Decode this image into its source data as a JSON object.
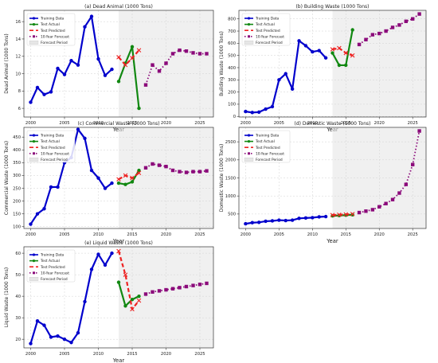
{
  "colors": {
    "train": "#0000cc",
    "test_actual": "#118811",
    "test_pred": "#ee2222",
    "forecast": "#8b0a7a",
    "forecast_period": "#e6e6e6",
    "grid": "#d2d2d2"
  },
  "legend_labels": {
    "train": "Training Data",
    "test_actual": "Test Actual",
    "test_pred": "Test Predicted",
    "forecast": "10-Year Forecast",
    "period": "Forecast Period"
  },
  "chart_data": [
    {
      "type": "line",
      "title": "(a) Dead Animal (1000 Tons)",
      "xlabel": "Year",
      "ylabel": "Dead Animal (1000 Tons)",
      "xlim": [
        1999,
        2027
      ],
      "ylim": [
        5,
        17.3
      ],
      "xticks": [
        2000,
        2005,
        2010,
        2015,
        2020,
        2025
      ],
      "yticks": [
        6,
        8,
        10,
        12,
        14,
        16
      ],
      "forecast_period": [
        2013,
        2027
      ],
      "grid": true,
      "legend": "top-left",
      "series": [
        {
          "role": "train",
          "x": [
            2000,
            2001,
            2002,
            2003,
            2004,
            2005,
            2006,
            2007,
            2008,
            2009,
            2010,
            2011,
            2012
          ],
          "y": [
            6.7,
            8.4,
            7.6,
            7.9,
            10.6,
            9.9,
            11.5,
            11.0,
            15.4,
            16.6,
            11.7,
            9.8,
            10.5
          ]
        },
        {
          "role": "test_actual",
          "x": [
            2013,
            2014,
            2015,
            2016
          ],
          "y": [
            9.1,
            11.2,
            13.1,
            6.0
          ]
        },
        {
          "role": "test_pred",
          "x": [
            2013,
            2014,
            2015,
            2016
          ],
          "y": [
            11.9,
            11.0,
            11.8,
            12.7
          ]
        },
        {
          "role": "forecast",
          "x": [
            2017,
            2018,
            2019,
            2020,
            2021,
            2022,
            2023,
            2024,
            2025,
            2026
          ],
          "y": [
            8.7,
            11.0,
            10.3,
            11.2,
            12.3,
            12.7,
            12.6,
            12.4,
            12.3,
            12.3
          ]
        }
      ]
    },
    {
      "type": "line",
      "title": "(b) Building Waste (1000 Tons)",
      "xlabel": "Year",
      "ylabel": "Building Waste (1000 Tons)",
      "xlim": [
        1999,
        2027
      ],
      "ylim": [
        -5,
        870
      ],
      "xticks": [
        2000,
        2005,
        2010,
        2015,
        2020,
        2025
      ],
      "yticks": [
        0,
        100,
        200,
        300,
        400,
        500,
        600,
        700,
        800
      ],
      "forecast_period": [
        2013,
        2027
      ],
      "grid": true,
      "legend": "top-left",
      "series": [
        {
          "role": "train",
          "x": [
            2000,
            2001,
            2002,
            2003,
            2004,
            2005,
            2006,
            2007,
            2008,
            2009,
            2010,
            2011,
            2012
          ],
          "y": [
            40,
            32,
            35,
            60,
            80,
            300,
            350,
            225,
            620,
            580,
            530,
            540,
            480
          ]
        },
        {
          "role": "test_actual",
          "x": [
            2013,
            2014,
            2015,
            2016
          ],
          "y": [
            520,
            420,
            420,
            710
          ]
        },
        {
          "role": "test_pred",
          "x": [
            2013,
            2014,
            2015,
            2016
          ],
          "y": [
            550,
            560,
            520,
            500
          ]
        },
        {
          "role": "forecast",
          "x": [
            2017,
            2018,
            2019,
            2020,
            2021,
            2022,
            2023,
            2024,
            2025,
            2026
          ],
          "y": [
            590,
            630,
            670,
            680,
            700,
            730,
            750,
            780,
            800,
            840
          ]
        }
      ]
    },
    {
      "type": "line",
      "title": "(c) Commercial Waste (1000 Tons)",
      "xlabel": "Year",
      "ylabel": "Commercial Waste (1000 Tons)",
      "xlim": [
        1999,
        2027
      ],
      "ylim": [
        93,
        488
      ],
      "xticks": [
        2000,
        2005,
        2010,
        2015,
        2020,
        2025
      ],
      "yticks": [
        100,
        150,
        200,
        250,
        300,
        350,
        400,
        450
      ],
      "forecast_period": [
        2013,
        2027
      ],
      "grid": true,
      "legend": "top-left",
      "series": [
        {
          "role": "train",
          "x": [
            2000,
            2001,
            2002,
            2003,
            2004,
            2005,
            2006,
            2007,
            2008,
            2009,
            2010,
            2011,
            2012
          ],
          "y": [
            110,
            150,
            170,
            255,
            255,
            350,
            370,
            480,
            445,
            320,
            290,
            250,
            270
          ]
        },
        {
          "role": "test_actual",
          "x": [
            2013,
            2014,
            2015,
            2016
          ],
          "y": [
            270,
            265,
            275,
            320
          ]
        },
        {
          "role": "test_pred",
          "x": [
            2013,
            2014,
            2015,
            2016
          ],
          "y": [
            285,
            300,
            290,
            310
          ]
        },
        {
          "role": "forecast",
          "x": [
            2017,
            2018,
            2019,
            2020,
            2021,
            2022,
            2023,
            2024,
            2025,
            2026
          ],
          "y": [
            330,
            345,
            340,
            335,
            320,
            315,
            312,
            315,
            315,
            318
          ]
        }
      ]
    },
    {
      "type": "line",
      "title": "(d) Domestic Waste (1000 Tons)",
      "xlabel": "Year",
      "ylabel": "Domestic Waste (1000 Tons)",
      "xlim": [
        1999,
        2027
      ],
      "ylim": [
        100,
        2900
      ],
      "xticks": [
        2000,
        2005,
        2010,
        2015,
        2020,
        2025
      ],
      "yticks": [
        500,
        1000,
        1500,
        2000,
        2500
      ],
      "forecast_period": [
        2013,
        2027
      ],
      "grid": true,
      "legend": "top-left",
      "series": [
        {
          "role": "train",
          "x": [
            2000,
            2001,
            2002,
            2003,
            2004,
            2005,
            2006,
            2007,
            2008,
            2009,
            2010,
            2011,
            2012
          ],
          "y": [
            230,
            260,
            270,
            300,
            310,
            330,
            320,
            330,
            380,
            390,
            400,
            420,
            430
          ]
        },
        {
          "role": "test_actual",
          "x": [
            2013,
            2014,
            2015,
            2016
          ],
          "y": [
            450,
            460,
            470,
            480
          ]
        },
        {
          "role": "test_pred",
          "x": [
            2013,
            2014,
            2015,
            2016
          ],
          "y": [
            470,
            480,
            490,
            500
          ]
        },
        {
          "role": "forecast",
          "x": [
            2017,
            2018,
            2019,
            2020,
            2021,
            2022,
            2023,
            2024,
            2025,
            2026
          ],
          "y": [
            540,
            580,
            620,
            700,
            790,
            900,
            1080,
            1320,
            1870,
            2800
          ]
        }
      ]
    },
    {
      "type": "line",
      "title": "(e) Liquid Waste (1000 Tons)",
      "xlabel": "Year",
      "ylabel": "Liquid Waste (1000 Tons)",
      "xlim": [
        1999,
        2027
      ],
      "ylim": [
        16,
        63
      ],
      "xticks": [
        2000,
        2005,
        2010,
        2015,
        2020,
        2025
      ],
      "yticks": [
        20,
        30,
        40,
        50,
        60
      ],
      "forecast_period": [
        2013,
        2027
      ],
      "grid": true,
      "legend": "top-left",
      "series": [
        {
          "role": "train",
          "x": [
            2000,
            2001,
            2002,
            2003,
            2004,
            2005,
            2006,
            2007,
            2008,
            2009,
            2010,
            2011,
            2012
          ],
          "y": [
            18,
            28.5,
            26.5,
            21,
            21.5,
            20,
            18.5,
            23,
            37.5,
            52.5,
            59.5,
            54.5,
            60
          ]
        },
        {
          "role": "test_actual",
          "x": [
            2013,
            2014,
            2015,
            2016
          ],
          "y": [
            46.5,
            35.5,
            38.5,
            40
          ]
        },
        {
          "role": "test_pred",
          "x": [
            2013,
            2014,
            2015,
            2016
          ],
          "y": [
            61,
            50,
            34,
            38
          ]
        },
        {
          "role": "forecast",
          "x": [
            2017,
            2018,
            2019,
            2020,
            2021,
            2022,
            2023,
            2024,
            2025,
            2026
          ],
          "y": [
            41,
            42,
            42.5,
            43,
            43.5,
            44,
            44.5,
            45,
            45.5,
            46
          ]
        }
      ]
    }
  ]
}
